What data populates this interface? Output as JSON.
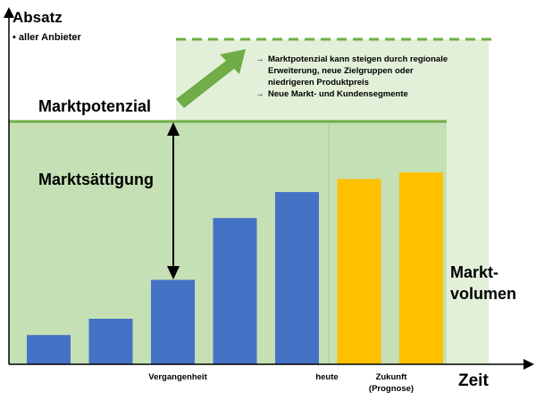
{
  "chart_data": {
    "type": "bar",
    "title": "",
    "ylabel": "Absatz",
    "ylabel_note": "• aller Anbieter",
    "xlabel": "Zeit",
    "ylim": [
      0,
      100
    ],
    "values": [
      9,
      14,
      26,
      45,
      53,
      57,
      59
    ],
    "periods": [
      "past",
      "past",
      "past",
      "past",
      "present",
      "forecast",
      "forecast"
    ],
    "x_period_labels": [
      "Vergangenheit",
      "heute",
      "Zukunft",
      "(Prognose)"
    ],
    "market_potential": {
      "label": "Marktpotenzial",
      "level": 75,
      "future_level": 97,
      "notes": [
        "Marktpotenzial kann steigen durch regionale",
        "Erweiterung, neue Zielgruppen oder",
        "niedrigeren Produktpreis",
        "Neue Markt- und Kundensegmente"
      ]
    },
    "saturation_label": "Marktsättigung",
    "volume_label": [
      "Markt-",
      "volumen"
    ],
    "colors": {
      "past": "#4472C4",
      "present": "#4472C4",
      "forecast": "#FFC000",
      "potential_line": "#70AD47",
      "potential_area": "#C5E0B4",
      "future_area": "#E2F0D9",
      "grid_divider": "#A9D18E"
    }
  }
}
